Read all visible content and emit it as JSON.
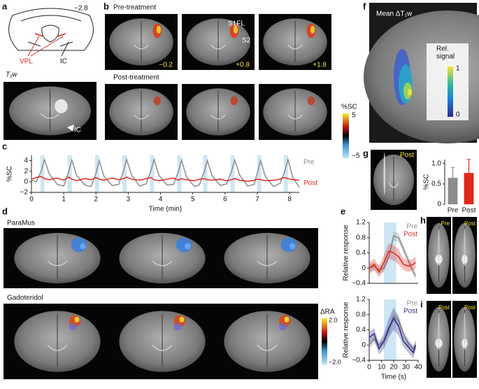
{
  "panels": {
    "a": {
      "label": "a",
      "slice": "−2.8",
      "vpl": "VPL",
      "ic": "IC",
      "image_title": "T₁w",
      "image_ic": "IC"
    },
    "b": {
      "label": "b",
      "pre": "Pre-treatment",
      "post": "Post-treatment",
      "s1fl": "S1FL",
      "s2": "S2",
      "coords": [
        "−0.2",
        "+0.8",
        "+1.8"
      ],
      "colorbar_title": "%SC",
      "colorbar_max": "5",
      "colorbar_min": "−5"
    },
    "c": {
      "label": "c"
    },
    "d": {
      "label": "d",
      "top": "ParaMus",
      "bottom": "Gadoteridol",
      "colorbar_title": "ΔRA",
      "colorbar_max": "2.0",
      "colorbar_min": "−2.0"
    },
    "e": {
      "label": "e"
    },
    "f": {
      "label": "f",
      "title": "Mean ΔT₁w",
      "colorbar_title": [
        "Rel.",
        "signal"
      ],
      "colorbar_max": "1",
      "colorbar_min": "0"
    },
    "g": {
      "label": "g",
      "image_label": "Post"
    },
    "h": {
      "label": "h",
      "left": "Pre",
      "right": "Post"
    },
    "i": {
      "label": "i",
      "left": "Post",
      "right": "Post"
    }
  },
  "chart_data": [
    {
      "type": "line",
      "xlabel": "Time (min)",
      "ylabel": "%SC",
      "x": [
        0,
        0.15,
        0.3,
        0.4,
        0.55,
        0.8,
        1.0,
        1.15,
        1.25,
        1.4,
        1.65,
        1.85,
        2.0,
        2.1,
        2.25,
        2.5,
        2.7,
        2.85,
        2.95,
        3.1,
        3.35,
        3.55,
        3.7,
        3.8,
        3.95,
        4.2,
        4.4,
        4.55,
        4.65,
        4.8,
        5.05,
        5.2,
        5.35,
        5.45,
        5.6,
        5.85,
        6.05,
        6.2,
        6.3,
        6.45,
        6.7,
        6.9,
        7.0,
        7.1,
        7.25,
        7.5,
        7.7,
        7.85,
        7.95,
        8.1,
        8.3
      ],
      "series": [
        {
          "name": "Pre",
          "color": "#8c8c8c",
          "values": [
            0.3,
            0,
            2.0,
            4.2,
            1.5,
            -0.5,
            -0.8,
            1.8,
            4.1,
            1.2,
            -0.6,
            -0.9,
            1.6,
            4.0,
            1.0,
            -0.7,
            -0.5,
            2.0,
            4.2,
            1.3,
            -0.8,
            -0.4,
            2.1,
            4.2,
            1.2,
            -0.6,
            -0.5,
            1.9,
            4.1,
            1.0,
            -0.9,
            -0.6,
            1.8,
            4.0,
            1.1,
            -0.7,
            -0.4,
            2.0,
            4.1,
            1.3,
            -0.8,
            -0.5,
            1.7,
            4.0,
            1.0,
            -0.9,
            -0.3,
            2.0,
            4.2,
            0.8,
            -1.0
          ]
        },
        {
          "name": "Post",
          "color": "#e0281e",
          "values": [
            0.5,
            0.8,
            1.0,
            0.6,
            0.4,
            0.7,
            0.3,
            0.9,
            0.5,
            0.2,
            0.6,
            0.4,
            0.8,
            0.5,
            0.3,
            0.7,
            0.4,
            0.6,
            0.9,
            0.5,
            0.3,
            0.6,
            0.8,
            0.4,
            0.2,
            0.5,
            0.7,
            0.3,
            0.6,
            0.4,
            0.2,
            0.5,
            0.6,
            0.4,
            0.3,
            0.5,
            0.2,
            0.4,
            0.6,
            0.3,
            0.1,
            0.3,
            0.5,
            0.4,
            0.2,
            0.3,
            0.5,
            0.8,
            0.6,
            0.4,
            0.3
          ]
        }
      ],
      "xlim": [
        0,
        8.3
      ],
      "ylim": [
        -2,
        5
      ],
      "xticks": [
        0,
        1,
        2,
        3,
        4,
        5,
        6,
        7,
        8
      ],
      "yticks": [
        {
          "value": -2,
          "label": "−2"
        },
        0,
        2,
        4
      ],
      "shaded": [
        [
          0.28,
          0.4
        ],
        [
          1.12,
          1.25
        ],
        [
          1.97,
          2.1
        ],
        [
          2.82,
          2.95
        ],
        [
          3.67,
          3.8
        ],
        [
          4.52,
          4.65
        ],
        [
          5.32,
          5.45
        ],
        [
          6.17,
          6.3
        ],
        [
          7.0,
          7.12
        ],
        [
          7.82,
          7.95
        ]
      ],
      "shade_color": "#cfe6f3"
    },
    {
      "type": "line",
      "ylabel": "Relative response",
      "x": [
        0,
        4,
        8,
        12,
        16,
        20,
        24,
        28,
        32,
        36,
        38
      ],
      "series": [
        {
          "name": "Pre",
          "color": "#8c8c8c",
          "values": [
            0,
            0.05,
            -0.05,
            0,
            0.3,
            0.85,
            0.8,
            0.5,
            0.2,
            -0.1,
            -0.2
          ],
          "errors": [
            0.1,
            0.1,
            0.1,
            0.1,
            0.1,
            0.12,
            0.12,
            0.1,
            0.1,
            0.1,
            0.1
          ]
        },
        {
          "name": "Post",
          "color": "#e0281e",
          "values": [
            0,
            0.1,
            -0.1,
            0.15,
            0.45,
            0.4,
            0.3,
            0.1,
            0.05,
            0.1,
            0.15
          ],
          "errors": [
            0.15,
            0.15,
            0.15,
            0.2,
            0.2,
            0.2,
            0.2,
            0.15,
            0.15,
            0.15,
            0.15
          ]
        }
      ],
      "xlim": [
        0,
        40
      ],
      "ylim": [
        -0.4,
        1.2
      ],
      "yticks": [
        {
          "value": -0.4,
          "label": "−0.4"
        },
        0,
        0.4,
        0.8,
        1.2
      ],
      "shaded": [
        [
          12,
          22
        ]
      ],
      "shade_color": "#cfe6f3"
    },
    {
      "type": "line",
      "ylabel": "Relative response",
      "xlabel": "Time (s)",
      "x": [
        0,
        4,
        8,
        12,
        16,
        20,
        24,
        28,
        32,
        36,
        38
      ],
      "series": [
        {
          "name": "Pre",
          "color": "#8c8c8c",
          "values": [
            0,
            0.15,
            0,
            0.1,
            0.4,
            0.75,
            0.65,
            0.3,
            0.05,
            -0.1,
            0
          ],
          "errors": [
            0.1,
            0.1,
            0.1,
            0.1,
            0.1,
            0.12,
            0.12,
            0.1,
            0.1,
            0.1,
            0.1
          ]
        },
        {
          "name": "Post",
          "color": "#2b2a84",
          "values": [
            0.2,
            0.3,
            -0.1,
            0.1,
            0.45,
            0.7,
            0.5,
            0.1,
            -0.05,
            -0.2,
            0
          ],
          "errors": [
            0.15,
            0.15,
            0.15,
            0.2,
            0.25,
            0.3,
            0.25,
            0.15,
            0.15,
            0.15,
            0.15
          ]
        }
      ],
      "xlim": [
        0,
        40
      ],
      "ylim": [
        -0.4,
        1.2
      ],
      "xticks": [
        0,
        10,
        20,
        30,
        40
      ],
      "yticks": [
        {
          "value": -0.4,
          "label": "−0.4"
        },
        0,
        0.4,
        0.8,
        1.2
      ],
      "shaded": [
        [
          12,
          22
        ]
      ],
      "shade_color": "#cfe6f3"
    },
    {
      "type": "bar",
      "ylabel": "%SC",
      "categories": [
        "Pre",
        "Post"
      ],
      "values": [
        0.65,
        0.77
      ],
      "errors": [
        0.25,
        0.33
      ],
      "colors": [
        "#8c8c8c",
        "#e0281e"
      ],
      "ylim": [
        0,
        1.1
      ],
      "yticks": [
        0,
        0.5,
        {
          "value": 1,
          "label": "1.0"
        }
      ]
    }
  ]
}
